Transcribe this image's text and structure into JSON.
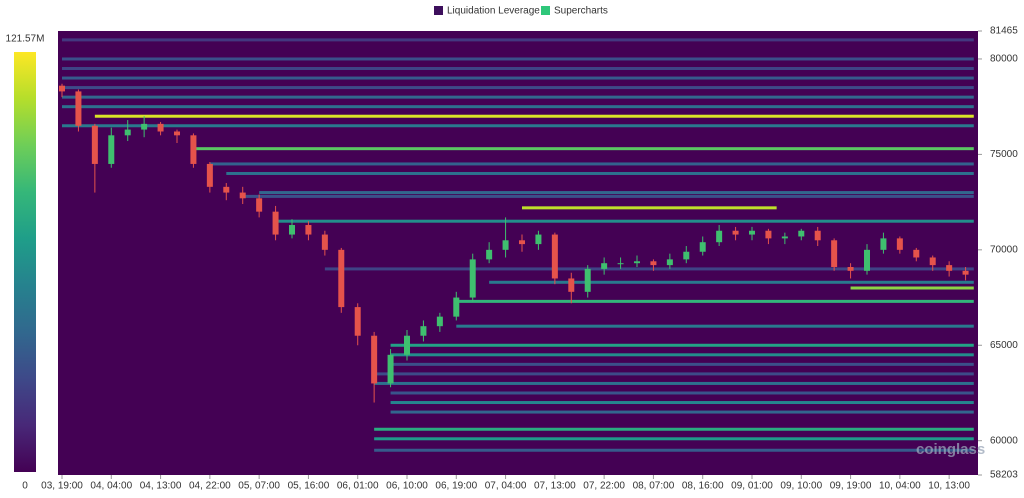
{
  "chart_data": {
    "type": "heatmap",
    "legend": [
      {
        "name": "Liquidation Leverage",
        "color": "#3d0f5c"
      },
      {
        "name": "Supercharts",
        "color": "#2fc77a"
      }
    ],
    "watermark": "coinglass",
    "colormap": [
      "#440154",
      "#482878",
      "#3e4989",
      "#31688e",
      "#26828e",
      "#1f9e89",
      "#35b779",
      "#6ece58",
      "#b5de2b",
      "#fde725"
    ],
    "clim": [
      0,
      121570000
    ],
    "cticks": [
      0,
      {
        "value": 121570000,
        "label": "121.57M"
      }
    ],
    "ylim": [
      58203,
      81465
    ],
    "yticks": [
      58203,
      60000,
      65000,
      70000,
      75000,
      80000,
      81465
    ],
    "categories": [
      "03, 19:00",
      null,
      null,
      "04, 04:00",
      null,
      null,
      "04, 13:00",
      null,
      null,
      "04, 22:00",
      null,
      null,
      "05, 07:00",
      null,
      null,
      "05, 16:00",
      null,
      null,
      "06, 01:00",
      null,
      null,
      "06, 10:00",
      null,
      null,
      "06, 19:00",
      null,
      null,
      "07, 04:00",
      null,
      null,
      "07, 13:00",
      null,
      null,
      "07, 22:00",
      null,
      null,
      "08, 07:00",
      null,
      null,
      "08, 16:00",
      null,
      null,
      "09, 01:00",
      null,
      null,
      "09, 10:00",
      null,
      null,
      "09, 19:00",
      null,
      null,
      "10, 04:00",
      null,
      null,
      "10, 13:00",
      null
    ],
    "up_color": "#3fbf6f",
    "down_color": "#e5534b",
    "open": [
      78600,
      78300,
      76500,
      74500,
      76000,
      76300,
      76600,
      76200,
      76000,
      74500,
      73300,
      73000,
      72700,
      72000,
      70800,
      71300,
      70800,
      70000,
      67000,
      65500,
      63000,
      64500,
      65500,
      66000,
      66500,
      67500,
      69500,
      70000,
      70500,
      70300,
      70800,
      68500,
      67800,
      69000,
      69300,
      69300,
      69400,
      69200,
      69500,
      69900,
      70400,
      71000,
      70800,
      71000,
      70600,
      70700,
      71000,
      70500,
      69100,
      68900,
      70000,
      70600,
      70000,
      69600,
      69200,
      68900
    ],
    "high": [
      78700,
      78400,
      76600,
      76400,
      76800,
      77000,
      76700,
      76300,
      76100,
      74600,
      73500,
      73300,
      72900,
      72300,
      71600,
      71500,
      71000,
      70100,
      67200,
      65700,
      64800,
      65800,
      66300,
      66700,
      67800,
      69800,
      70400,
      71700,
      70800,
      71000,
      70900,
      68800,
      69200,
      69600,
      69600,
      69700,
      69500,
      69800,
      70200,
      70700,
      71300,
      71200,
      71200,
      71100,
      70900,
      71100,
      71200,
      70600,
      69300,
      70300,
      70900,
      70700,
      70100,
      69700,
      69400,
      69100
    ],
    "low": [
      78000,
      76200,
      73000,
      74300,
      75700,
      75900,
      76000,
      75600,
      74300,
      73000,
      72600,
      72400,
      71700,
      70500,
      70600,
      70500,
      69700,
      66700,
      65000,
      62000,
      62800,
      64200,
      65200,
      65700,
      66300,
      67300,
      69300,
      69600,
      69900,
      70000,
      68200,
      67200,
      67500,
      68700,
      69000,
      69100,
      68900,
      69000,
      69300,
      69700,
      70200,
      70500,
      70500,
      70300,
      70300,
      70500,
      70200,
      68900,
      68500,
      68700,
      69800,
      69800,
      69400,
      68900,
      68600,
      68400
    ],
    "close": [
      78300,
      76500,
      74500,
      76000,
      76300,
      76600,
      76200,
      76000,
      74500,
      73300,
      73000,
      72700,
      72000,
      70800,
      71300,
      70800,
      70000,
      67000,
      65500,
      63000,
      64500,
      65500,
      66000,
      66500,
      67500,
      69500,
      70000,
      70500,
      70300,
      70800,
      68500,
      67800,
      69000,
      69300,
      69300,
      69400,
      69200,
      69500,
      69900,
      70400,
      71000,
      70800,
      71000,
      70600,
      70700,
      71000,
      70500,
      69100,
      68900,
      70000,
      70600,
      70000,
      69600,
      69200,
      68900,
      68700
    ],
    "levels": {
      "price": [
        81000,
        80000,
        79500,
        79000,
        78500,
        78000,
        77500,
        77000,
        76500,
        75300,
        74500,
        74000,
        73000,
        72800,
        72200,
        71500,
        69000,
        68300,
        68000,
        67300,
        66000,
        65000,
        64500,
        64000,
        63500,
        63000,
        62500,
        62000,
        61500,
        60600,
        60100,
        59500
      ],
      "start": [
        0,
        0,
        0,
        0,
        0,
        0,
        0,
        2,
        0,
        8,
        9,
        10,
        12,
        11,
        28,
        13,
        16,
        26,
        48,
        24,
        24,
        20,
        20,
        20,
        19,
        19,
        20,
        20,
        20,
        19,
        19,
        19
      ],
      "end": [
        55,
        55,
        55,
        55,
        55,
        55,
        55,
        55,
        55,
        55,
        55,
        55,
        55,
        55,
        43,
        55,
        55,
        55,
        55,
        55,
        55,
        55,
        55,
        55,
        55,
        55,
        55,
        55,
        55,
        55,
        55,
        55
      ],
      "values": [
        20000000,
        30000000,
        25000000,
        35000000,
        28000000,
        40000000,
        45000000,
        115000000,
        50000000,
        90000000,
        38000000,
        45000000,
        40000000,
        30000000,
        110000000,
        60000000,
        25000000,
        50000000,
        100000000,
        80000000,
        50000000,
        70000000,
        60000000,
        30000000,
        28000000,
        45000000,
        32000000,
        55000000,
        40000000,
        75000000,
        65000000,
        35000000
      ]
    }
  }
}
